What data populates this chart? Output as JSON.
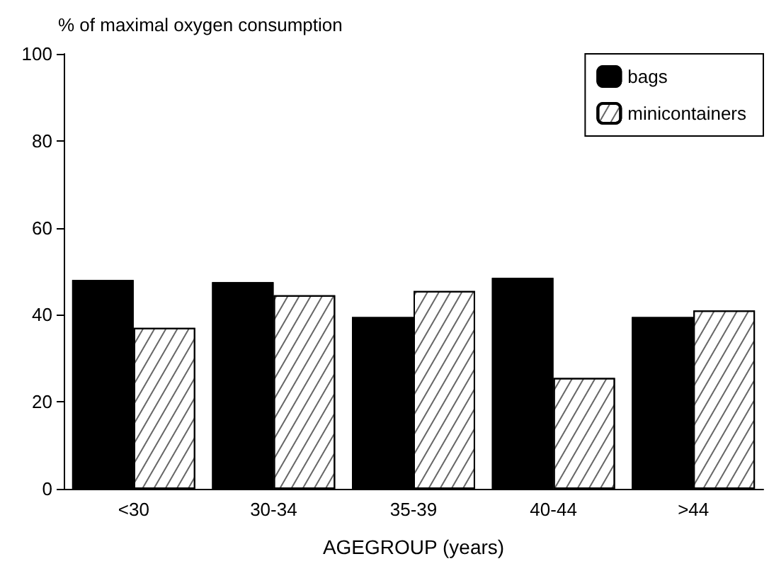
{
  "chart_data": {
    "type": "bar",
    "ylabel": "% of maximal oxygen consumption",
    "xlabel": "AGEGROUP (years)",
    "categories": [
      "<30",
      "30-34",
      "35-39",
      "40-44",
      ">44"
    ],
    "series": [
      {
        "name": "bags",
        "color": "#000000",
        "values": [
          48,
          47.5,
          39.5,
          48.5,
          39.5
        ]
      },
      {
        "name": "minicontainers",
        "color": "#ffffff",
        "values": [
          37,
          44.5,
          45.5,
          25.5,
          41
        ]
      }
    ],
    "ylim": [
      0,
      100
    ],
    "yticks": [
      0,
      20,
      40,
      60,
      80,
      100
    ],
    "grid": false,
    "legend": "top right"
  }
}
